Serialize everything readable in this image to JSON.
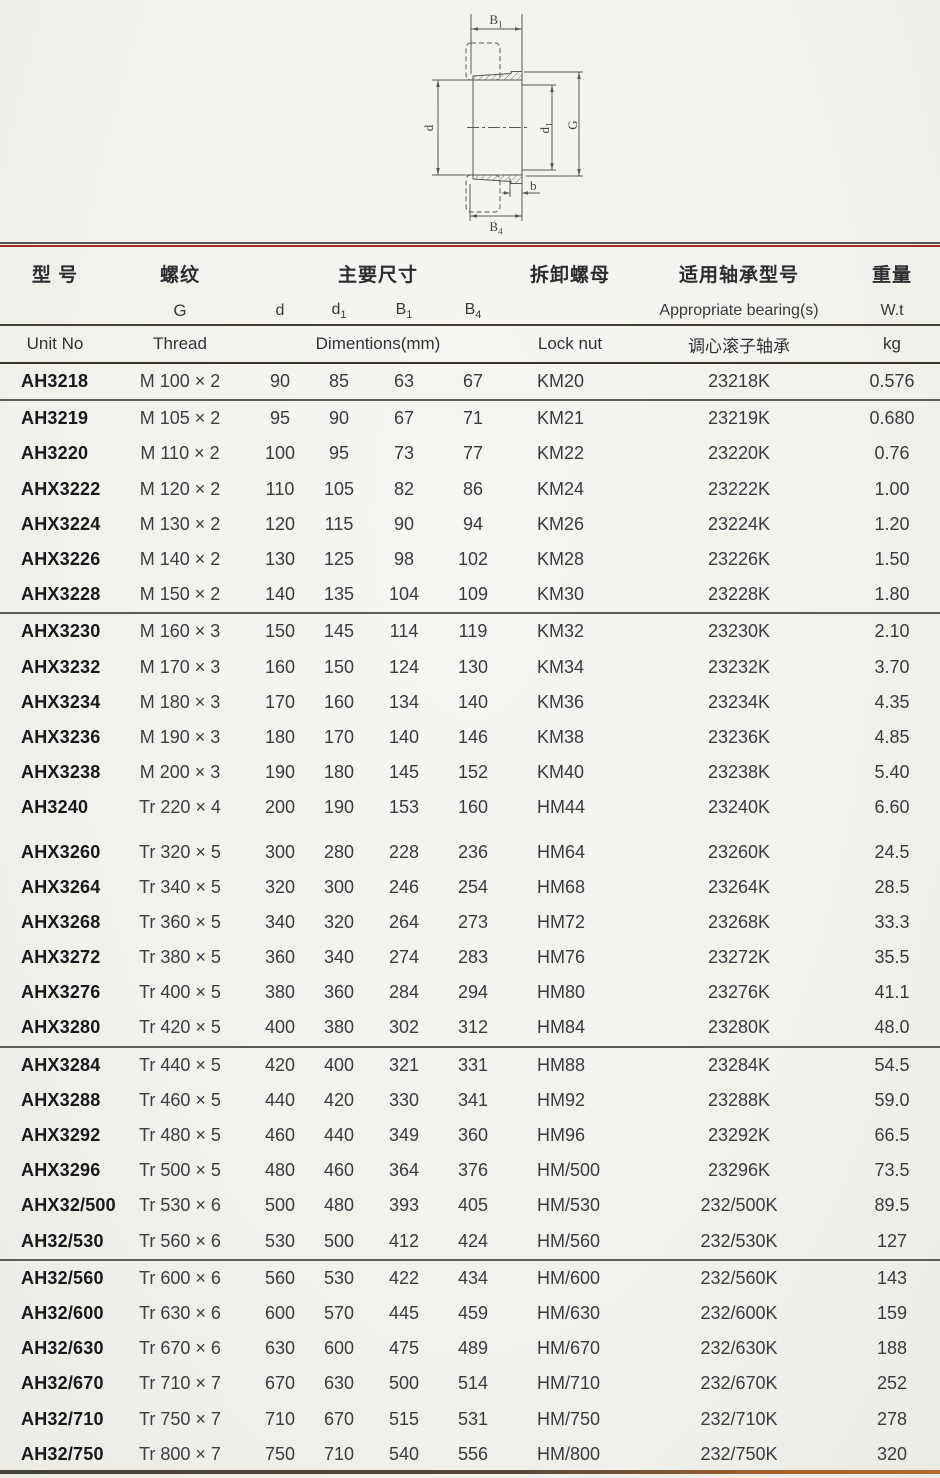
{
  "drawing": {
    "labels": {
      "b1_base": "B",
      "b1_sub": "1",
      "d": "d",
      "d1_base": "d",
      "d1_sub": "1",
      "g": "G",
      "b": "b",
      "b4_base": "B",
      "b4_sub": "4"
    }
  },
  "colors": {
    "accent_red": "#9e3129",
    "rule_dark": "#3b3831",
    "rule_brown": "#a8652e"
  },
  "table": {
    "header": {
      "model_cn": "型 号",
      "thread_cn": "螺纹",
      "dims_cn": "主要尺寸",
      "locknut_cn": "拆卸螺母",
      "bearing_cn": "适用轴承型号",
      "weight_cn": "重量",
      "thread_symbol": "G",
      "dim_d": "d",
      "dim_d1_base": "d",
      "dim_d1_sub": "1",
      "dim_b1_base": "B",
      "dim_b1_sub": "1",
      "dim_b4_base": "B",
      "dim_b4_sub": "4",
      "bearing_en": "Appropriate bearing(s)",
      "weight_symbol": "W.t",
      "model_en": "Unit No",
      "thread_en": "Thread",
      "dims_en": "Dimentions(mm)",
      "locknut_en": "Lock nut",
      "bearing_cn2": "调心滚子轴承",
      "weight_unit": "kg"
    },
    "columns_keys": [
      "model",
      "thread",
      "d",
      "d1",
      "b1",
      "b4",
      "lock_nut",
      "bearing",
      "weight"
    ],
    "groups": [
      {
        "divider_after": true,
        "rows": [
          {
            "model": "AH3218",
            "thread": "M 100 × 2",
            "d": "90",
            "d1": "85",
            "b1": "63",
            "b4": "67",
            "lock_nut": "KM20",
            "bearing": "23218K",
            "weight": "0.576"
          }
        ]
      },
      {
        "divider_after": true,
        "rows": [
          {
            "model": "AH3219",
            "thread": "M 105 × 2",
            "d": "95",
            "d1": "90",
            "b1": "67",
            "b4": "71",
            "lock_nut": "KM21",
            "bearing": "23219K",
            "weight": "0.680"
          },
          {
            "model": "AH3220",
            "thread": "M 110 × 2",
            "d": "100",
            "d1": "95",
            "b1": "73",
            "b4": "77",
            "lock_nut": "KM22",
            "bearing": "23220K",
            "weight": "0.76"
          },
          {
            "model": "AHX3222",
            "thread": "M 120 × 2",
            "d": "110",
            "d1": "105",
            "b1": "82",
            "b4": "86",
            "lock_nut": "KM24",
            "bearing": "23222K",
            "weight": "1.00"
          },
          {
            "model": "AHX3224",
            "thread": "M 130 × 2",
            "d": "120",
            "d1": "115",
            "b1": "90",
            "b4": "94",
            "lock_nut": "KM26",
            "bearing": "23224K",
            "weight": "1.20"
          },
          {
            "model": "AHX3226",
            "thread": "M 140 × 2",
            "d": "130",
            "d1": "125",
            "b1": "98",
            "b4": "102",
            "lock_nut": "KM28",
            "bearing": "23226K",
            "weight": "1.50"
          },
          {
            "model": "AHX3228",
            "thread": "M 150 × 2",
            "d": "140",
            "d1": "135",
            "b1": "104",
            "b4": "109",
            "lock_nut": "KM30",
            "bearing": "23228K",
            "weight": "1.80"
          }
        ]
      },
      {
        "gap_after": true,
        "rows": [
          {
            "model": "AHX3230",
            "thread": "M 160 × 3",
            "d": "150",
            "d1": "145",
            "b1": "114",
            "b4": "119",
            "lock_nut": "KM32",
            "bearing": "23230K",
            "weight": "2.10"
          },
          {
            "model": "AHX3232",
            "thread": "M 170 × 3",
            "d": "160",
            "d1": "150",
            "b1": "124",
            "b4": "130",
            "lock_nut": "KM34",
            "bearing": "23232K",
            "weight": "3.70"
          },
          {
            "model": "AHX3234",
            "thread": "M 180 × 3",
            "d": "170",
            "d1": "160",
            "b1": "134",
            "b4": "140",
            "lock_nut": "KM36",
            "bearing": "23234K",
            "weight": "4.35"
          },
          {
            "model": "AHX3236",
            "thread": "M 190 × 3",
            "d": "180",
            "d1": "170",
            "b1": "140",
            "b4": "146",
            "lock_nut": "KM38",
            "bearing": "23236K",
            "weight": "4.85"
          },
          {
            "model": "AHX3238",
            "thread": "M 200 × 3",
            "d": "190",
            "d1": "180",
            "b1": "145",
            "b4": "152",
            "lock_nut": "KM40",
            "bearing": "23238K",
            "weight": "5.40"
          },
          {
            "model": "AH3240",
            "thread": "Tr 220 × 4",
            "d": "200",
            "d1": "190",
            "b1": "153",
            "b4": "160",
            "lock_nut": "HM44",
            "bearing": "23240K",
            "weight": "6.60"
          }
        ]
      },
      {
        "divider_after": true,
        "rows": [
          {
            "model": "AHX3260",
            "thread": "Tr 320 × 5",
            "d": "300",
            "d1": "280",
            "b1": "228",
            "b4": "236",
            "lock_nut": "HM64",
            "bearing": "23260K",
            "weight": "24.5"
          },
          {
            "model": "AHX3264",
            "thread": "Tr 340 × 5",
            "d": "320",
            "d1": "300",
            "b1": "246",
            "b4": "254",
            "lock_nut": "HM68",
            "bearing": "23264K",
            "weight": "28.5"
          },
          {
            "model": "AHX3268",
            "thread": "Tr 360 × 5",
            "d": "340",
            "d1": "320",
            "b1": "264",
            "b4": "273",
            "lock_nut": "HM72",
            "bearing": "23268K",
            "weight": "33.3"
          },
          {
            "model": "AHX3272",
            "thread": "Tr 380 × 5",
            "d": "360",
            "d1": "340",
            "b1": "274",
            "b4": "283",
            "lock_nut": "HM76",
            "bearing": "23272K",
            "weight": "35.5"
          },
          {
            "model": "AHX3276",
            "thread": "Tr 400 × 5",
            "d": "380",
            "d1": "360",
            "b1": "284",
            "b4": "294",
            "lock_nut": "HM80",
            "bearing": "23276K",
            "weight": "41.1"
          },
          {
            "model": "AHX3280",
            "thread": "Tr 420 × 5",
            "d": "400",
            "d1": "380",
            "b1": "302",
            "b4": "312",
            "lock_nut": "HM84",
            "bearing": "23280K",
            "weight": "48.0"
          }
        ]
      },
      {
        "divider_after": true,
        "rows": [
          {
            "model": "AHX3284",
            "thread": "Tr 440 × 5",
            "d": "420",
            "d1": "400",
            "b1": "321",
            "b4": "331",
            "lock_nut": "HM88",
            "bearing": "23284K",
            "weight": "54.5"
          },
          {
            "model": "AHX3288",
            "thread": "Tr 460 × 5",
            "d": "440",
            "d1": "420",
            "b1": "330",
            "b4": "341",
            "lock_nut": "HM92",
            "bearing": "23288K",
            "weight": "59.0"
          },
          {
            "model": "AHX3292",
            "thread": "Tr 480 × 5",
            "d": "460",
            "d1": "440",
            "b1": "349",
            "b4": "360",
            "lock_nut": "HM96",
            "bearing": "23292K",
            "weight": "66.5"
          },
          {
            "model": "AHX3296",
            "thread": "Tr 500 × 5",
            "d": "480",
            "d1": "460",
            "b1": "364",
            "b4": "376",
            "lock_nut": "HM/500",
            "bearing": "23296K",
            "weight": "73.5"
          },
          {
            "model": "AHX32/500",
            "thread": "Tr 530 × 6",
            "d": "500",
            "d1": "480",
            "b1": "393",
            "b4": "405",
            "lock_nut": "HM/530",
            "bearing": "232/500K",
            "weight": "89.5"
          },
          {
            "model": "AH32/530",
            "thread": "Tr 560 × 6",
            "d": "530",
            "d1": "500",
            "b1": "412",
            "b4": "424",
            "lock_nut": "HM/560",
            "bearing": "232/530K",
            "weight": "127"
          }
        ]
      },
      {
        "rows": [
          {
            "model": "AH32/560",
            "thread": "Tr 600 × 6",
            "d": "560",
            "d1": "530",
            "b1": "422",
            "b4": "434",
            "lock_nut": "HM/600",
            "bearing": "232/560K",
            "weight": "143"
          },
          {
            "model": "AH32/600",
            "thread": "Tr 630 × 6",
            "d": "600",
            "d1": "570",
            "b1": "445",
            "b4": "459",
            "lock_nut": "HM/630",
            "bearing": "232/600K",
            "weight": "159"
          },
          {
            "model": "AH32/630",
            "thread": "Tr 670 × 6",
            "d": "630",
            "d1": "600",
            "b1": "475",
            "b4": "489",
            "lock_nut": "HM/670",
            "bearing": "232/630K",
            "weight": "188"
          },
          {
            "model": "AH32/670",
            "thread": "Tr 710 × 7",
            "d": "670",
            "d1": "630",
            "b1": "500",
            "b4": "514",
            "lock_nut": "HM/710",
            "bearing": "232/670K",
            "weight": "252"
          },
          {
            "model": "AH32/710",
            "thread": "Tr 750 × 7",
            "d": "710",
            "d1": "670",
            "b1": "515",
            "b4": "531",
            "lock_nut": "HM/750",
            "bearing": "232/710K",
            "weight": "278"
          },
          {
            "model": "AH32/750",
            "thread": "Tr 800 × 7",
            "d": "750",
            "d1": "710",
            "b1": "540",
            "b4": "556",
            "lock_nut": "HM/800",
            "bearing": "232/750K",
            "weight": "320"
          }
        ]
      }
    ]
  }
}
